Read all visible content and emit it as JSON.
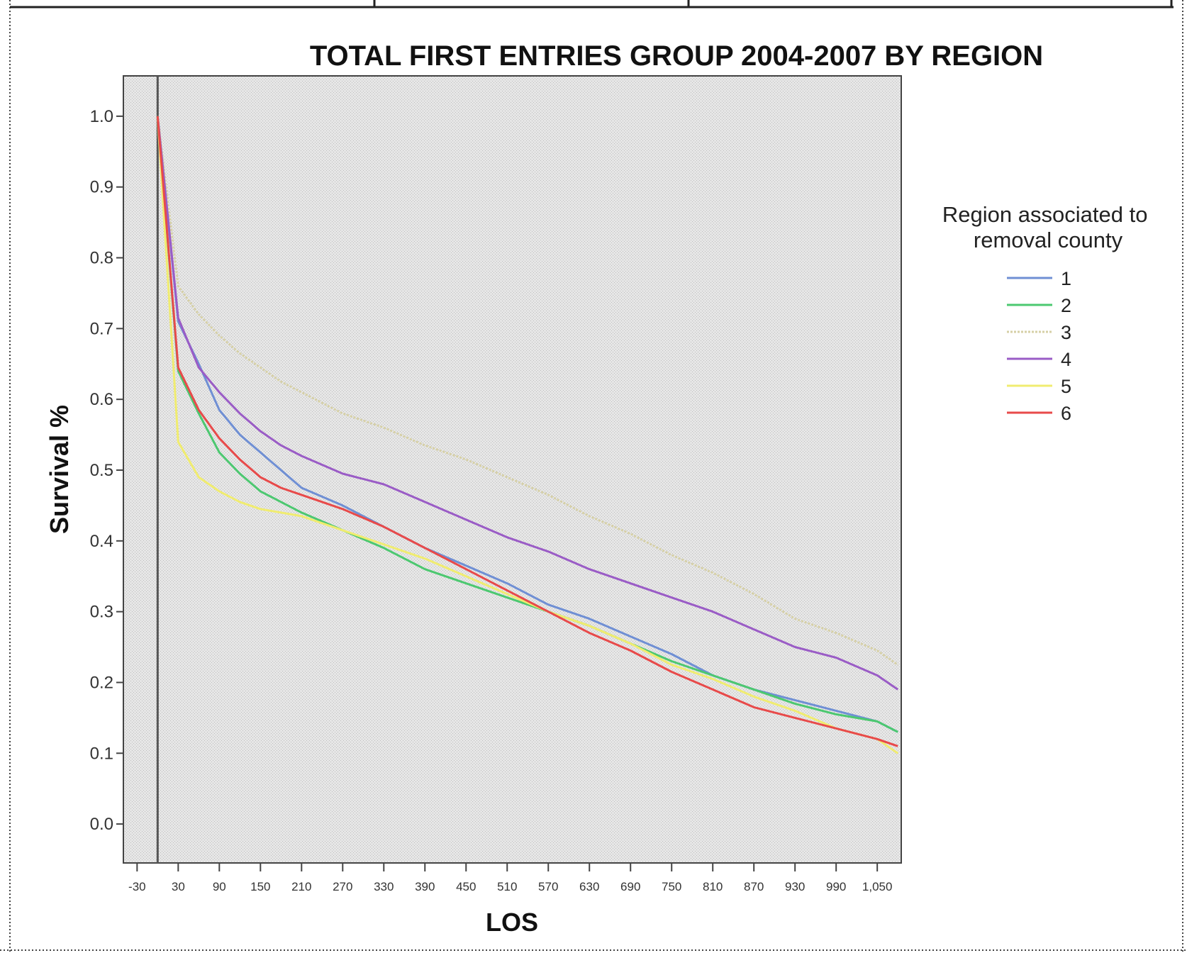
{
  "chart_data": {
    "type": "line",
    "title": "TOTAL FIRST ENTRIES GROUP 2004-2007 BY REGION",
    "xlabel": "LOS",
    "ylabel": "Survival %",
    "x_ticks": [
      "-30",
      "30",
      "90",
      "150",
      "210",
      "270",
      "330",
      "390",
      "450",
      "510",
      "570",
      "630",
      "690",
      "750",
      "810",
      "870",
      "930",
      "990",
      "1,050"
    ],
    "y_ticks": [
      "0.0",
      "0.1",
      "0.2",
      "0.3",
      "0.4",
      "0.5",
      "0.6",
      "0.7",
      "0.8",
      "0.9",
      "1.0"
    ],
    "xlim": [
      -50,
      1085
    ],
    "ylim": [
      -0.055,
      1.057
    ],
    "reference_line_x": 0,
    "grid": false,
    "legend": {
      "title": "Region associated to removal county",
      "title_lines": [
        "Region associated to",
        "removal county"
      ],
      "position": "right"
    },
    "x": [
      0,
      30,
      60,
      90,
      120,
      150,
      180,
      210,
      270,
      330,
      390,
      450,
      510,
      570,
      630,
      690,
      750,
      810,
      870,
      930,
      990,
      1050,
      1080
    ],
    "series": [
      {
        "name": "1",
        "color": "#6f8fd4",
        "style": "solid",
        "values": [
          1.0,
          0.71,
          0.65,
          0.585,
          0.55,
          0.525,
          0.5,
          0.475,
          0.45,
          0.42,
          0.39,
          0.365,
          0.34,
          0.31,
          0.29,
          0.265,
          0.24,
          0.21,
          0.19,
          0.175,
          0.16,
          0.145,
          0.13
        ]
      },
      {
        "name": "2",
        "color": "#4cc870",
        "style": "solid",
        "values": [
          1.0,
          0.64,
          0.58,
          0.525,
          0.495,
          0.47,
          0.455,
          0.44,
          0.415,
          0.39,
          0.36,
          0.34,
          0.32,
          0.3,
          0.28,
          0.255,
          0.23,
          0.21,
          0.19,
          0.17,
          0.155,
          0.145,
          0.13
        ]
      },
      {
        "name": "3",
        "color": "#d6d0a6",
        "style": "dotted",
        "values": [
          1.0,
          0.76,
          0.72,
          0.69,
          0.665,
          0.645,
          0.625,
          0.61,
          0.58,
          0.56,
          0.535,
          0.515,
          0.49,
          0.465,
          0.435,
          0.41,
          0.38,
          0.355,
          0.325,
          0.29,
          0.27,
          0.245,
          0.225
        ]
      },
      {
        "name": "4",
        "color": "#9a5cc6",
        "style": "solid",
        "values": [
          1.0,
          0.715,
          0.645,
          0.61,
          0.58,
          0.555,
          0.535,
          0.52,
          0.495,
          0.48,
          0.455,
          0.43,
          0.405,
          0.385,
          0.36,
          0.34,
          0.32,
          0.3,
          0.275,
          0.25,
          0.235,
          0.21,
          0.19
        ]
      },
      {
        "name": "5",
        "color": "#f0ec70",
        "style": "solid",
        "values": [
          1.0,
          0.54,
          0.49,
          0.47,
          0.455,
          0.445,
          0.44,
          0.435,
          0.415,
          0.395,
          0.375,
          0.35,
          0.325,
          0.3,
          0.28,
          0.255,
          0.225,
          0.205,
          0.18,
          0.16,
          0.135,
          0.12,
          0.1
        ]
      },
      {
        "name": "6",
        "color": "#e84a4a",
        "style": "solid",
        "values": [
          1.0,
          0.645,
          0.585,
          0.545,
          0.515,
          0.49,
          0.475,
          0.465,
          0.445,
          0.42,
          0.39,
          0.36,
          0.33,
          0.3,
          0.27,
          0.245,
          0.215,
          0.19,
          0.165,
          0.15,
          0.135,
          0.12,
          0.11
        ]
      }
    ]
  }
}
